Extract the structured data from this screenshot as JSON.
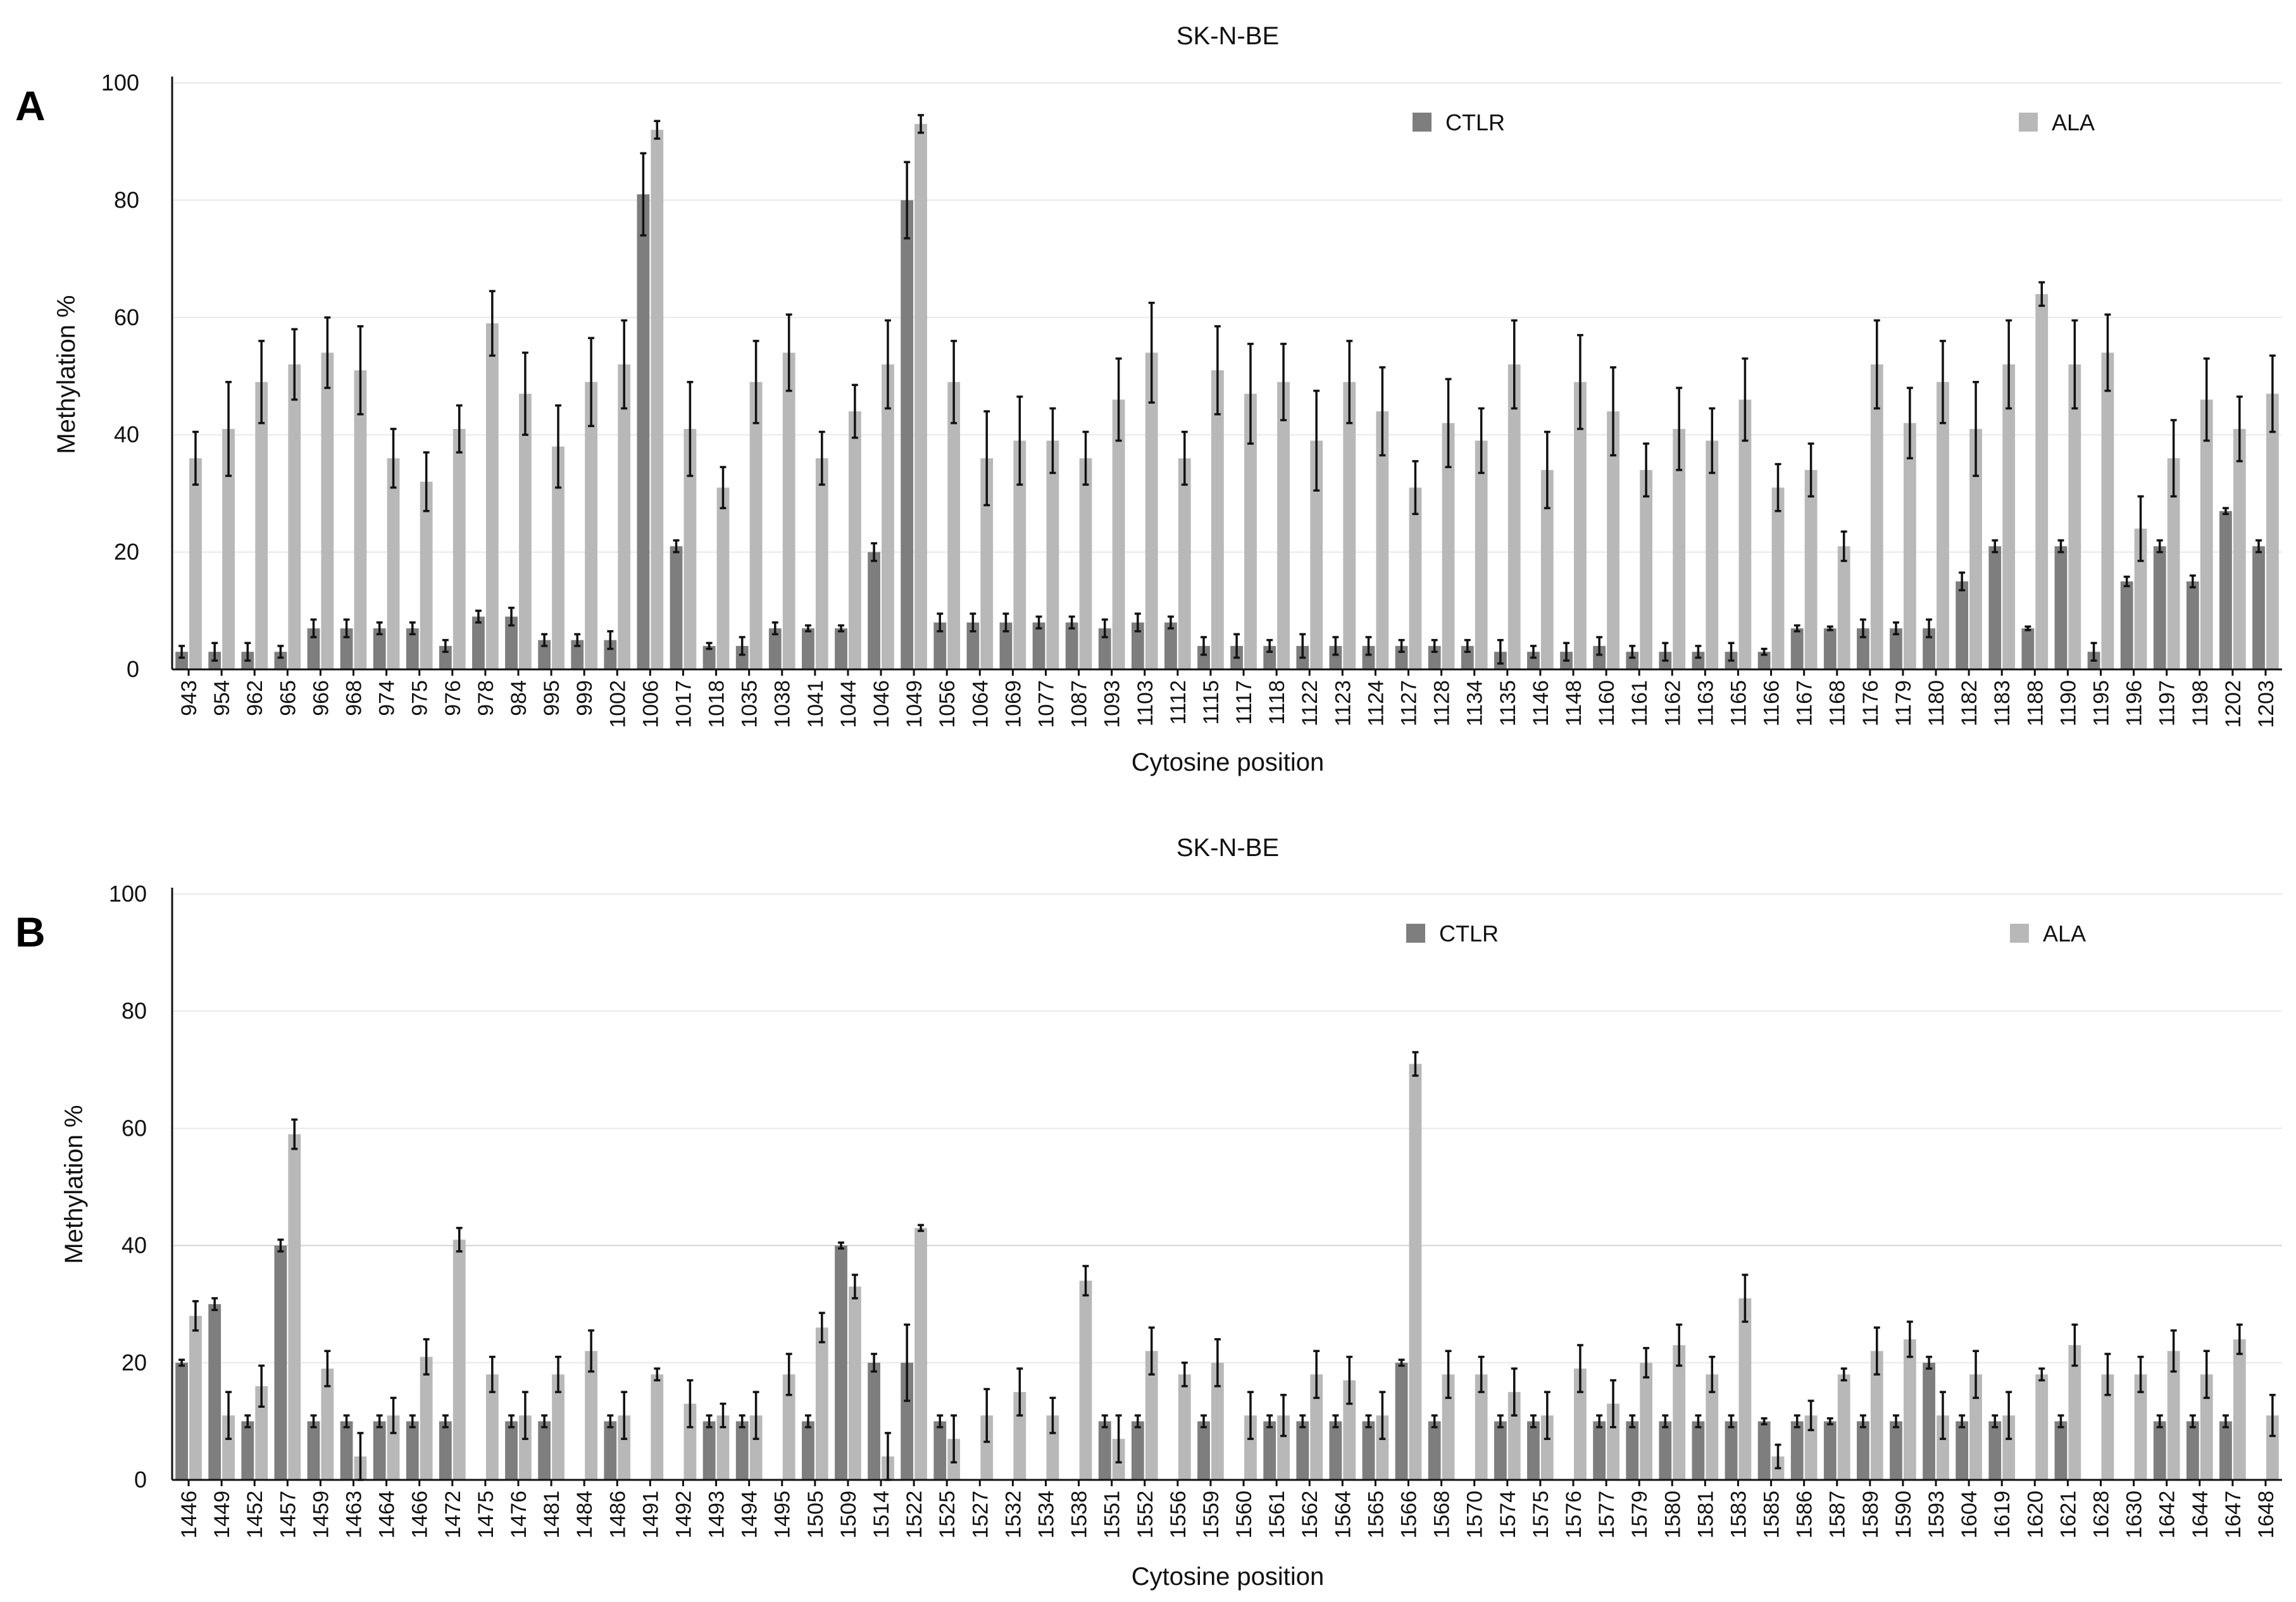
{
  "figure": {
    "colors": {
      "CTLR": "#7e7e7e",
      "ALA": "#b8b8b8"
    }
  },
  "chart_data": [
    {
      "panel": "A",
      "type": "bar",
      "title": "SK-N-BE",
      "xlabel": "Cytosine position",
      "ylabel": "Methylation %",
      "ylim": [
        0,
        100
      ],
      "yticks": [
        "0",
        "20",
        "40",
        "60",
        "80",
        "100"
      ],
      "grid": true,
      "legend": {
        "position": "top-right",
        "entries": [
          "CTLR",
          "ALA"
        ]
      },
      "categories": [
        "943",
        "954",
        "962",
        "965",
        "966",
        "968",
        "974",
        "975",
        "976",
        "978",
        "984",
        "995",
        "999",
        "1002",
        "1006",
        "1017",
        "1018",
        "1035",
        "1038",
        "1041",
        "1044",
        "1046",
        "1049",
        "1056",
        "1064",
        "1069",
        "1077",
        "1087",
        "1093",
        "1103",
        "1112",
        "1115",
        "1117",
        "1118",
        "1122",
        "1123",
        "1124",
        "1127",
        "1128",
        "1134",
        "1135",
        "1146",
        "1148",
        "1160",
        "1161",
        "1162",
        "1163",
        "1165",
        "1166",
        "1167",
        "1168",
        "1176",
        "1179",
        "1180",
        "1182",
        "1183",
        "1188",
        "1190",
        "1195",
        "1196",
        "1197",
        "1198",
        "1202",
        "1203"
      ],
      "series": [
        {
          "name": "CTLR",
          "values": [
            3,
            3,
            3,
            3,
            7,
            7,
            7,
            7,
            4,
            9,
            9,
            5,
            5,
            5,
            81,
            21,
            4,
            4,
            7,
            7,
            7,
            20,
            80,
            8,
            8,
            8,
            8,
            8,
            7,
            8,
            8,
            4,
            4,
            4,
            4,
            4,
            4,
            4,
            4,
            4,
            3,
            3,
            3,
            4,
            3,
            3,
            3,
            3,
            3,
            7,
            7,
            7,
            7,
            7,
            15,
            21,
            7,
            21,
            3,
            15,
            21,
            15,
            27,
            21
          ],
          "errors": [
            1,
            1.5,
            1.5,
            1,
            1.5,
            1.5,
            1,
            1,
            1,
            1,
            1.5,
            1,
            1,
            1.5,
            7,
            1,
            0.5,
            1.5,
            1,
            0.5,
            0.5,
            1.5,
            6.5,
            1.5,
            1.5,
            1.5,
            1,
            1,
            1.5,
            1.5,
            1,
            1.5,
            2,
            1,
            2,
            1.5,
            1.5,
            1,
            1,
            1,
            2,
            1,
            1.5,
            1.5,
            1,
            1.5,
            1,
            1.5,
            0.5,
            0.5,
            0.3,
            1.5,
            1,
            1.5,
            1.5,
            1,
            0.3,
            1,
            1.5,
            0.8,
            1,
            1,
            0.5,
            1
          ]
        },
        {
          "name": "ALA",
          "values": [
            36,
            41,
            49,
            52,
            54,
            51,
            36,
            32,
            41,
            59,
            47,
            38,
            49,
            52,
            92,
            41,
            31,
            49,
            54,
            36,
            44,
            52,
            93,
            49,
            36,
            39,
            39,
            36,
            46,
            54,
            36,
            51,
            47,
            49,
            39,
            49,
            44,
            31,
            42,
            39,
            52,
            34,
            49,
            44,
            34,
            41,
            39,
            46,
            31,
            34,
            21,
            52,
            42,
            49,
            41,
            52,
            64,
            52,
            54,
            24,
            36,
            46,
            41,
            47
          ],
          "errors": [
            4.5,
            8,
            7,
            6,
            6,
            7.5,
            5,
            5,
            4,
            5.5,
            7,
            7,
            7.5,
            7.5,
            1.5,
            8,
            3.5,
            7,
            6.5,
            4.5,
            4.5,
            7.5,
            1.5,
            7,
            8,
            7.5,
            5.5,
            4.5,
            7,
            8.5,
            4.5,
            7.5,
            8.5,
            6.5,
            8.5,
            7,
            7.5,
            4.5,
            7.5,
            5.5,
            7.5,
            6.5,
            8,
            7.5,
            4.5,
            7,
            5.5,
            7,
            4,
            4.5,
            2.5,
            7.5,
            6,
            7,
            8,
            7.5,
            2,
            7.5,
            6.5,
            5.5,
            6.5,
            7,
            5.5,
            6.5
          ]
        }
      ]
    },
    {
      "panel": "B",
      "type": "bar",
      "title": "SK-N-BE",
      "xlabel": "Cytosine position",
      "ylabel": "Methylation %",
      "ylim": [
        0,
        100
      ],
      "yticks": [
        "0",
        "20",
        "40",
        "60",
        "80",
        "100"
      ],
      "grid": true,
      "legend": {
        "position": "top-right",
        "entries": [
          "CTLR",
          "ALA"
        ]
      },
      "categories": [
        "1446",
        "1449",
        "1452",
        "1457",
        "1459",
        "1463",
        "1464",
        "1466",
        "1472",
        "1475",
        "1476",
        "1481",
        "1484",
        "1486",
        "1491",
        "1492",
        "1493",
        "1494",
        "1495",
        "1505",
        "1509",
        "1514",
        "1522",
        "1525",
        "1527",
        "1532",
        "1534",
        "1538",
        "1551",
        "1552",
        "1556",
        "1559",
        "1560",
        "1561",
        "1562",
        "1564",
        "1565",
        "1566",
        "1568",
        "1570",
        "1574",
        "1575",
        "1576",
        "1577",
        "1579",
        "1580",
        "1581",
        "1583",
        "1585",
        "1586",
        "1587",
        "1589",
        "1590",
        "1593",
        "1604",
        "1619",
        "1620",
        "1621",
        "1628",
        "1630",
        "1642",
        "1644",
        "1647",
        "1648"
      ],
      "series": [
        {
          "name": "CTLR",
          "values": [
            20,
            30,
            10,
            40,
            10,
            10,
            10,
            10,
            10,
            0,
            10,
            10,
            0,
            10,
            0,
            0,
            10,
            10,
            0,
            10,
            40,
            20,
            20,
            10,
            0,
            0,
            0,
            0,
            10,
            10,
            0,
            10,
            0,
            10,
            10,
            10,
            10,
            20,
            10,
            0,
            10,
            10,
            0,
            10,
            10,
            10,
            10,
            10,
            10,
            10,
            10,
            10,
            10,
            20,
            10,
            10,
            0,
            10,
            0,
            0,
            10,
            10,
            10,
            0
          ],
          "errors": [
            0.5,
            1,
            1,
            1,
            1,
            1,
            1,
            1,
            1,
            0,
            1,
            1,
            0,
            1,
            0,
            0,
            1,
            1,
            0,
            1,
            0.5,
            1.5,
            6.5,
            1,
            0,
            0,
            0,
            0,
            1,
            1,
            0,
            1,
            0,
            1,
            1,
            1,
            1,
            0.5,
            1,
            0,
            1,
            1,
            0,
            1,
            1,
            1,
            1,
            1,
            0.5,
            1,
            0.5,
            1,
            1,
            1,
            1,
            1,
            0,
            1,
            0,
            0,
            1,
            1,
            1,
            0
          ]
        },
        {
          "name": "ALA",
          "values": [
            28,
            11,
            16,
            59,
            19,
            4,
            11,
            21,
            41,
            18,
            11,
            18,
            22,
            11,
            18,
            13,
            11,
            11,
            18,
            26,
            33,
            4,
            43,
            7,
            11,
            15,
            11,
            34,
            7,
            22,
            18,
            20,
            11,
            11,
            18,
            17,
            11,
            71,
            18,
            18,
            15,
            11,
            19,
            13,
            20,
            23,
            18,
            31,
            4,
            11,
            18,
            22,
            24,
            11,
            18,
            11,
            18,
            23,
            18,
            18,
            22,
            18,
            24,
            11
          ],
          "errors": [
            2.5,
            4,
            3.5,
            2.5,
            3,
            4,
            3,
            3,
            2,
            3,
            4,
            3,
            3.5,
            4,
            1,
            4,
            2,
            4,
            3.5,
            2.5,
            2,
            4,
            0.5,
            4,
            4.5,
            4,
            3,
            2.5,
            4,
            4,
            2,
            4,
            4,
            3.5,
            4,
            4,
            4,
            2,
            4,
            3,
            4,
            4,
            4,
            4,
            2.5,
            3.5,
            3,
            4,
            2,
            2.5,
            1,
            4,
            3,
            4,
            4,
            4,
            1,
            3.5,
            3.5,
            3,
            3.5,
            4,
            2.5,
            3.5
          ]
        }
      ]
    }
  ]
}
